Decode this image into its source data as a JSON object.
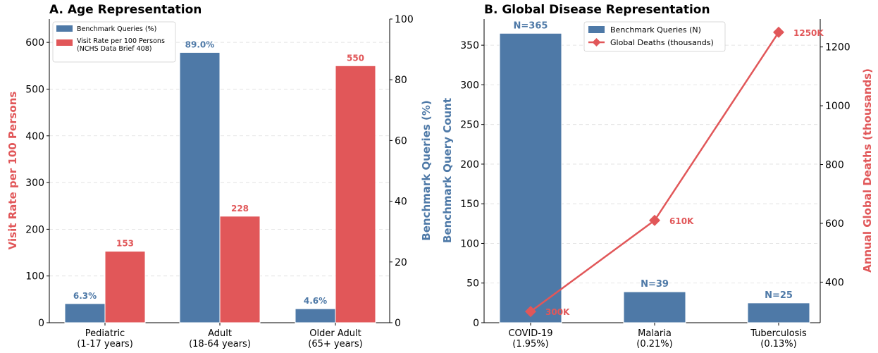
{
  "chart_data": [
    {
      "type": "bar",
      "title": "A. Age Representation",
      "categories": [
        "Pediatric\n(1-17 years)",
        "Adult\n(18-64 years)",
        "Older Adult\n(65+ years)"
      ],
      "series": [
        {
          "name": "Benchmark Queries (%)",
          "axis": "right",
          "color": "#4e79a7",
          "values": [
            6.3,
            89.0,
            4.6
          ],
          "labels": [
            "6.3%",
            "89.0%",
            "4.6%"
          ]
        },
        {
          "name": "Visit Rate per 100 Persons\n(NCHS Data Brief 408)",
          "axis": "left",
          "color": "#e15759",
          "values": [
            153,
            228,
            550
          ],
          "labels": [
            "153",
            "228",
            "550"
          ]
        }
      ],
      "ylabel_left": "Visit Rate per 100 Persons",
      "ylabel_right": "Benchmark Queries (%)",
      "ylim_left": [
        0,
        650
      ],
      "yticks_left": [
        0,
        100,
        200,
        300,
        400,
        500,
        600
      ],
      "ylim_right": [
        0,
        100
      ],
      "yticks_right": [
        0,
        20,
        40,
        60,
        80,
        100
      ],
      "grid": true,
      "legend": "top-left"
    },
    {
      "type": "bar+line",
      "title": "B. Global Disease Representation",
      "categories": [
        "COVID-19\n(1.95%)",
        "Malaria\n(0.21%)",
        "Tuberculosis\n(0.13%)"
      ],
      "series": [
        {
          "name": "Benchmark Queries (N)",
          "type": "bar",
          "axis": "left",
          "color": "#4e79a7",
          "values": [
            365,
            39,
            25
          ],
          "labels": [
            "N=365",
            "N=39",
            "N=25"
          ]
        },
        {
          "name": "Global Deaths (thousands)",
          "type": "line",
          "axis": "right",
          "color": "#e15759",
          "values": [
            300,
            610,
            1250
          ],
          "labels": [
            "300K",
            "610K",
            "1250K"
          ]
        }
      ],
      "ylabel_left": "Benchmark Query Count",
      "ylabel_right": "Annual Global Deaths (thousands)",
      "ylim_left": [
        0,
        383
      ],
      "yticks_left": [
        0,
        50,
        100,
        150,
        200,
        250,
        300,
        350
      ],
      "ylim_right": [
        262,
        1295
      ],
      "yticks_right": [
        400,
        600,
        800,
        1000,
        1200
      ],
      "grid": true,
      "legend": "top-center"
    }
  ]
}
